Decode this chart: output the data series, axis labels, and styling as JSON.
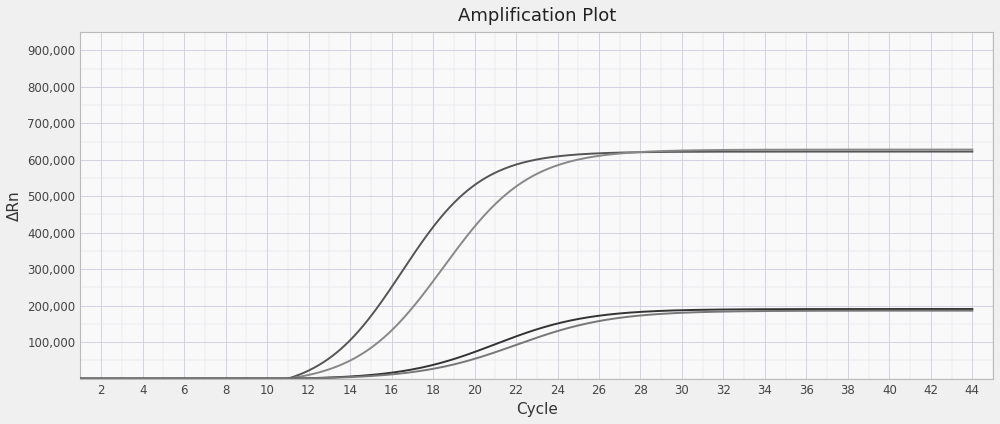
{
  "title": "Amplification Plot",
  "xlabel": "Cycle",
  "ylabel": "ΔRn",
  "xlim": [
    1,
    45
  ],
  "ylim": [
    0,
    950000
  ],
  "xticks": [
    2,
    4,
    6,
    8,
    10,
    12,
    14,
    16,
    18,
    20,
    22,
    24,
    26,
    28,
    30,
    32,
    34,
    36,
    38,
    40,
    42,
    44
  ],
  "yticks": [
    100000,
    200000,
    300000,
    400000,
    500000,
    600000,
    700000,
    800000,
    900000
  ],
  "ytick_labels": [
    "100,000",
    "200,000",
    "300,000",
    "400,000",
    "500,000",
    "600,000",
    "700,000",
    "800,000",
    "900,000"
  ],
  "bg_color": "#f0f0f0",
  "plot_bg_color": "#f9f9f9",
  "grid_color_major": "#ccccdd",
  "grid_color_minor": "#e0e0ec",
  "line_colors": [
    "#555555",
    "#888888",
    "#333333",
    "#777777"
  ],
  "line_width": 1.4,
  "curves": [
    {
      "plateau": 658000,
      "midpoint": 16.5,
      "steepness": 0.52,
      "start": 11.0
    },
    {
      "plateau": 645000,
      "midpoint": 18.5,
      "steepness": 0.48,
      "start": 11.0
    },
    {
      "plateau": 193000,
      "midpoint": 21.0,
      "steepness": 0.45,
      "start": 11.0
    },
    {
      "plateau": 188000,
      "midpoint": 22.0,
      "steepness": 0.43,
      "start": 11.0
    }
  ]
}
